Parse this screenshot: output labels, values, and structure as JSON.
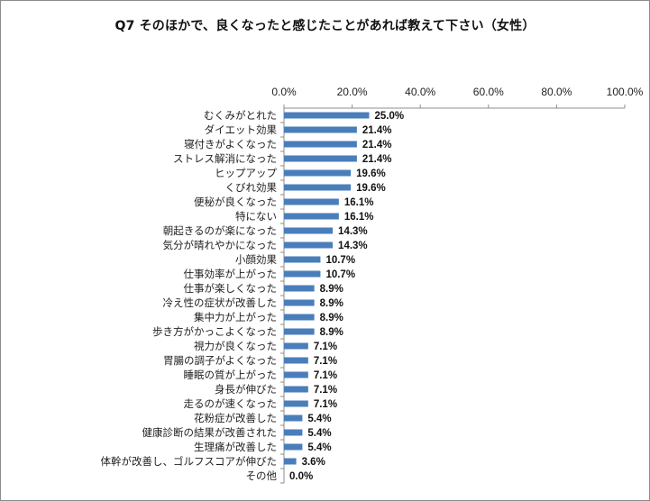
{
  "chart_data": {
    "type": "bar",
    "orientation": "horizontal",
    "title": "Q7 そのほかで、良くなったと感じたことがあれば教えて下さい（女性）",
    "xlabel": "",
    "ylabel": "",
    "xlim": [
      0,
      100
    ],
    "x_ticks": [
      "0.0%",
      "20.0%",
      "40.0%",
      "60.0%",
      "80.0%",
      "100.0%"
    ],
    "x_tick_values": [
      0,
      20,
      40,
      60,
      80,
      100
    ],
    "axis_position": "top",
    "grid": false,
    "bar_color": "#4a7ebb",
    "categories": [
      "むくみがとれた",
      "ダイエット効果",
      "寝付きがよくなった",
      "ストレス解消になった",
      "ヒップアップ",
      "くびれ効果",
      "便秘が良くなった",
      "特にない",
      "朝起きるのが楽になった",
      "気分が晴れやかになった",
      "小顔効果",
      "仕事効率が上がった",
      "仕事が楽しくなった",
      "冷え性の症状が改善した",
      "集中力が上がった",
      "歩き方がかっこよくなった",
      "視力が良くなった",
      "胃腸の調子がよくなった",
      "睡眠の質が上がった",
      "身長が伸びた",
      "走るのが速くなった",
      "花粉症が改善した",
      "健康診断の結果が改善された",
      "生理痛が改善した",
      "体幹が改善し、ゴルフスコアが伸びた",
      "その他"
    ],
    "values": [
      25.0,
      21.4,
      21.4,
      21.4,
      19.6,
      19.6,
      16.1,
      16.1,
      14.3,
      14.3,
      10.7,
      10.7,
      8.9,
      8.9,
      8.9,
      8.9,
      7.1,
      7.1,
      7.1,
      7.1,
      7.1,
      5.4,
      5.4,
      5.4,
      3.6,
      0.0
    ],
    "value_labels": [
      "25.0%",
      "21.4%",
      "21.4%",
      "21.4%",
      "19.6%",
      "19.6%",
      "16.1%",
      "16.1%",
      "14.3%",
      "14.3%",
      "10.7%",
      "10.7%",
      "8.9%",
      "8.9%",
      "8.9%",
      "8.9%",
      "7.1%",
      "7.1%",
      "7.1%",
      "7.1%",
      "7.1%",
      "5.4%",
      "5.4%",
      "5.4%",
      "3.6%",
      "0.0%"
    ]
  }
}
